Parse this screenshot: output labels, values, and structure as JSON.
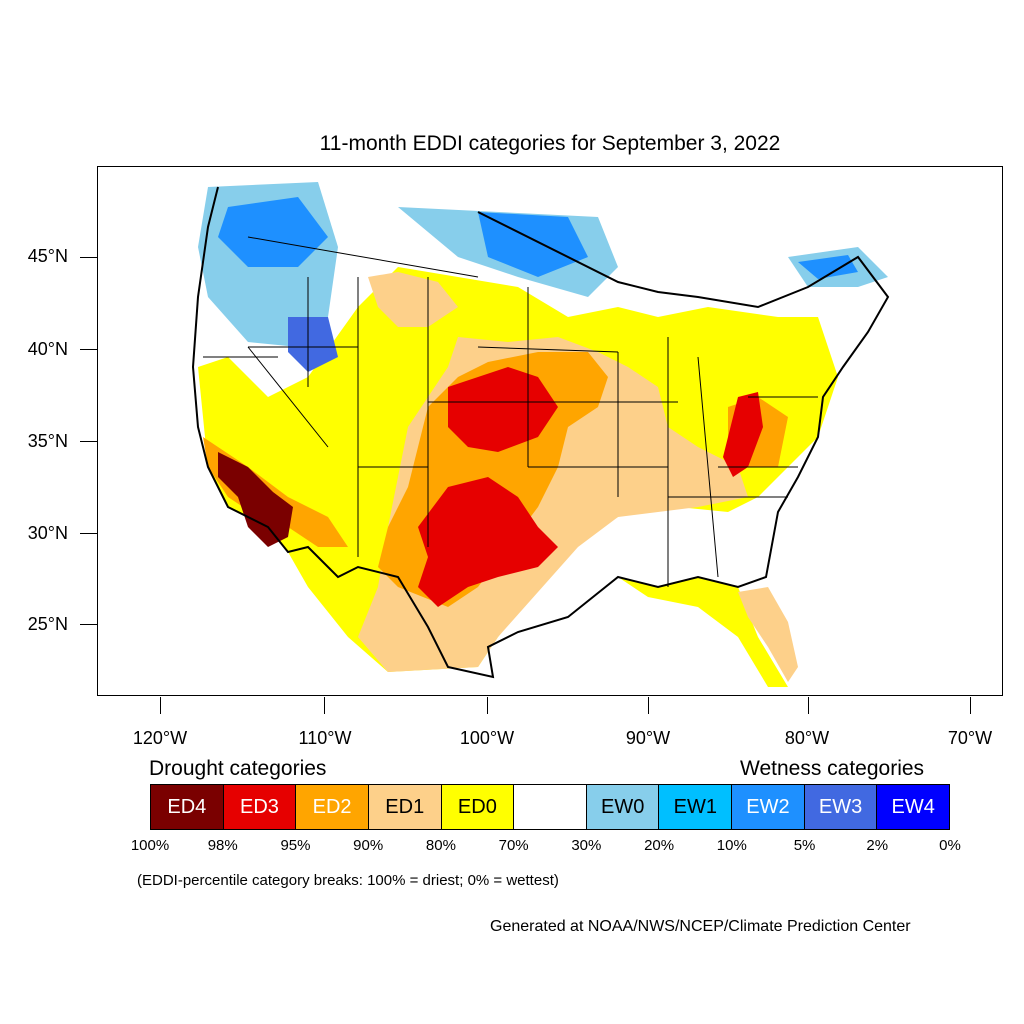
{
  "title": "11-month EDDI categories for September 3, 2022",
  "lat_labels": [
    "45°N",
    "40°N",
    "35°N",
    "30°N",
    "25°N"
  ],
  "lon_labels": [
    "120°W",
    "110°W",
    "100°W",
    "90°W",
    "80°W",
    "70°W"
  ],
  "legend": {
    "drought_title": "Drought categories",
    "wetness_title": "Wetness categories",
    "categories": [
      {
        "label": "ED4",
        "color": "#7a0000",
        "text_color": "#ffffff"
      },
      {
        "label": "ED3",
        "color": "#e60000",
        "text_color": "#ffffff"
      },
      {
        "label": "ED2",
        "color": "#ffa500",
        "text_color": "#ffffff"
      },
      {
        "label": "ED1",
        "color": "#fdd08a",
        "text_color": "#000000"
      },
      {
        "label": "ED0",
        "color": "#ffff00",
        "text_color": "#000000"
      },
      {
        "label": "",
        "color": "#ffffff",
        "text_color": "#000000"
      },
      {
        "label": "EW0",
        "color": "#87ceeb",
        "text_color": "#000000"
      },
      {
        "label": "EW1",
        "color": "#00bfff",
        "text_color": "#000000"
      },
      {
        "label": "EW2",
        "color": "#1e90ff",
        "text_color": "#ffffff"
      },
      {
        "label": "EW3",
        "color": "#4169e1",
        "text_color": "#ffffff"
      },
      {
        "label": "EW4",
        "color": "#0000ff",
        "text_color": "#ffffff"
      }
    ],
    "breaks": [
      "100%",
      "98%",
      "95%",
      "90%",
      "80%",
      "70%",
      "30%",
      "20%",
      "10%",
      "5%",
      "2%",
      "0%"
    ]
  },
  "note": "(EDDI-percentile category breaks: 100% = driest; 0% = wettest)",
  "credit": "Generated at NOAA/NWS/NCEP/Climate Prediction Center"
}
